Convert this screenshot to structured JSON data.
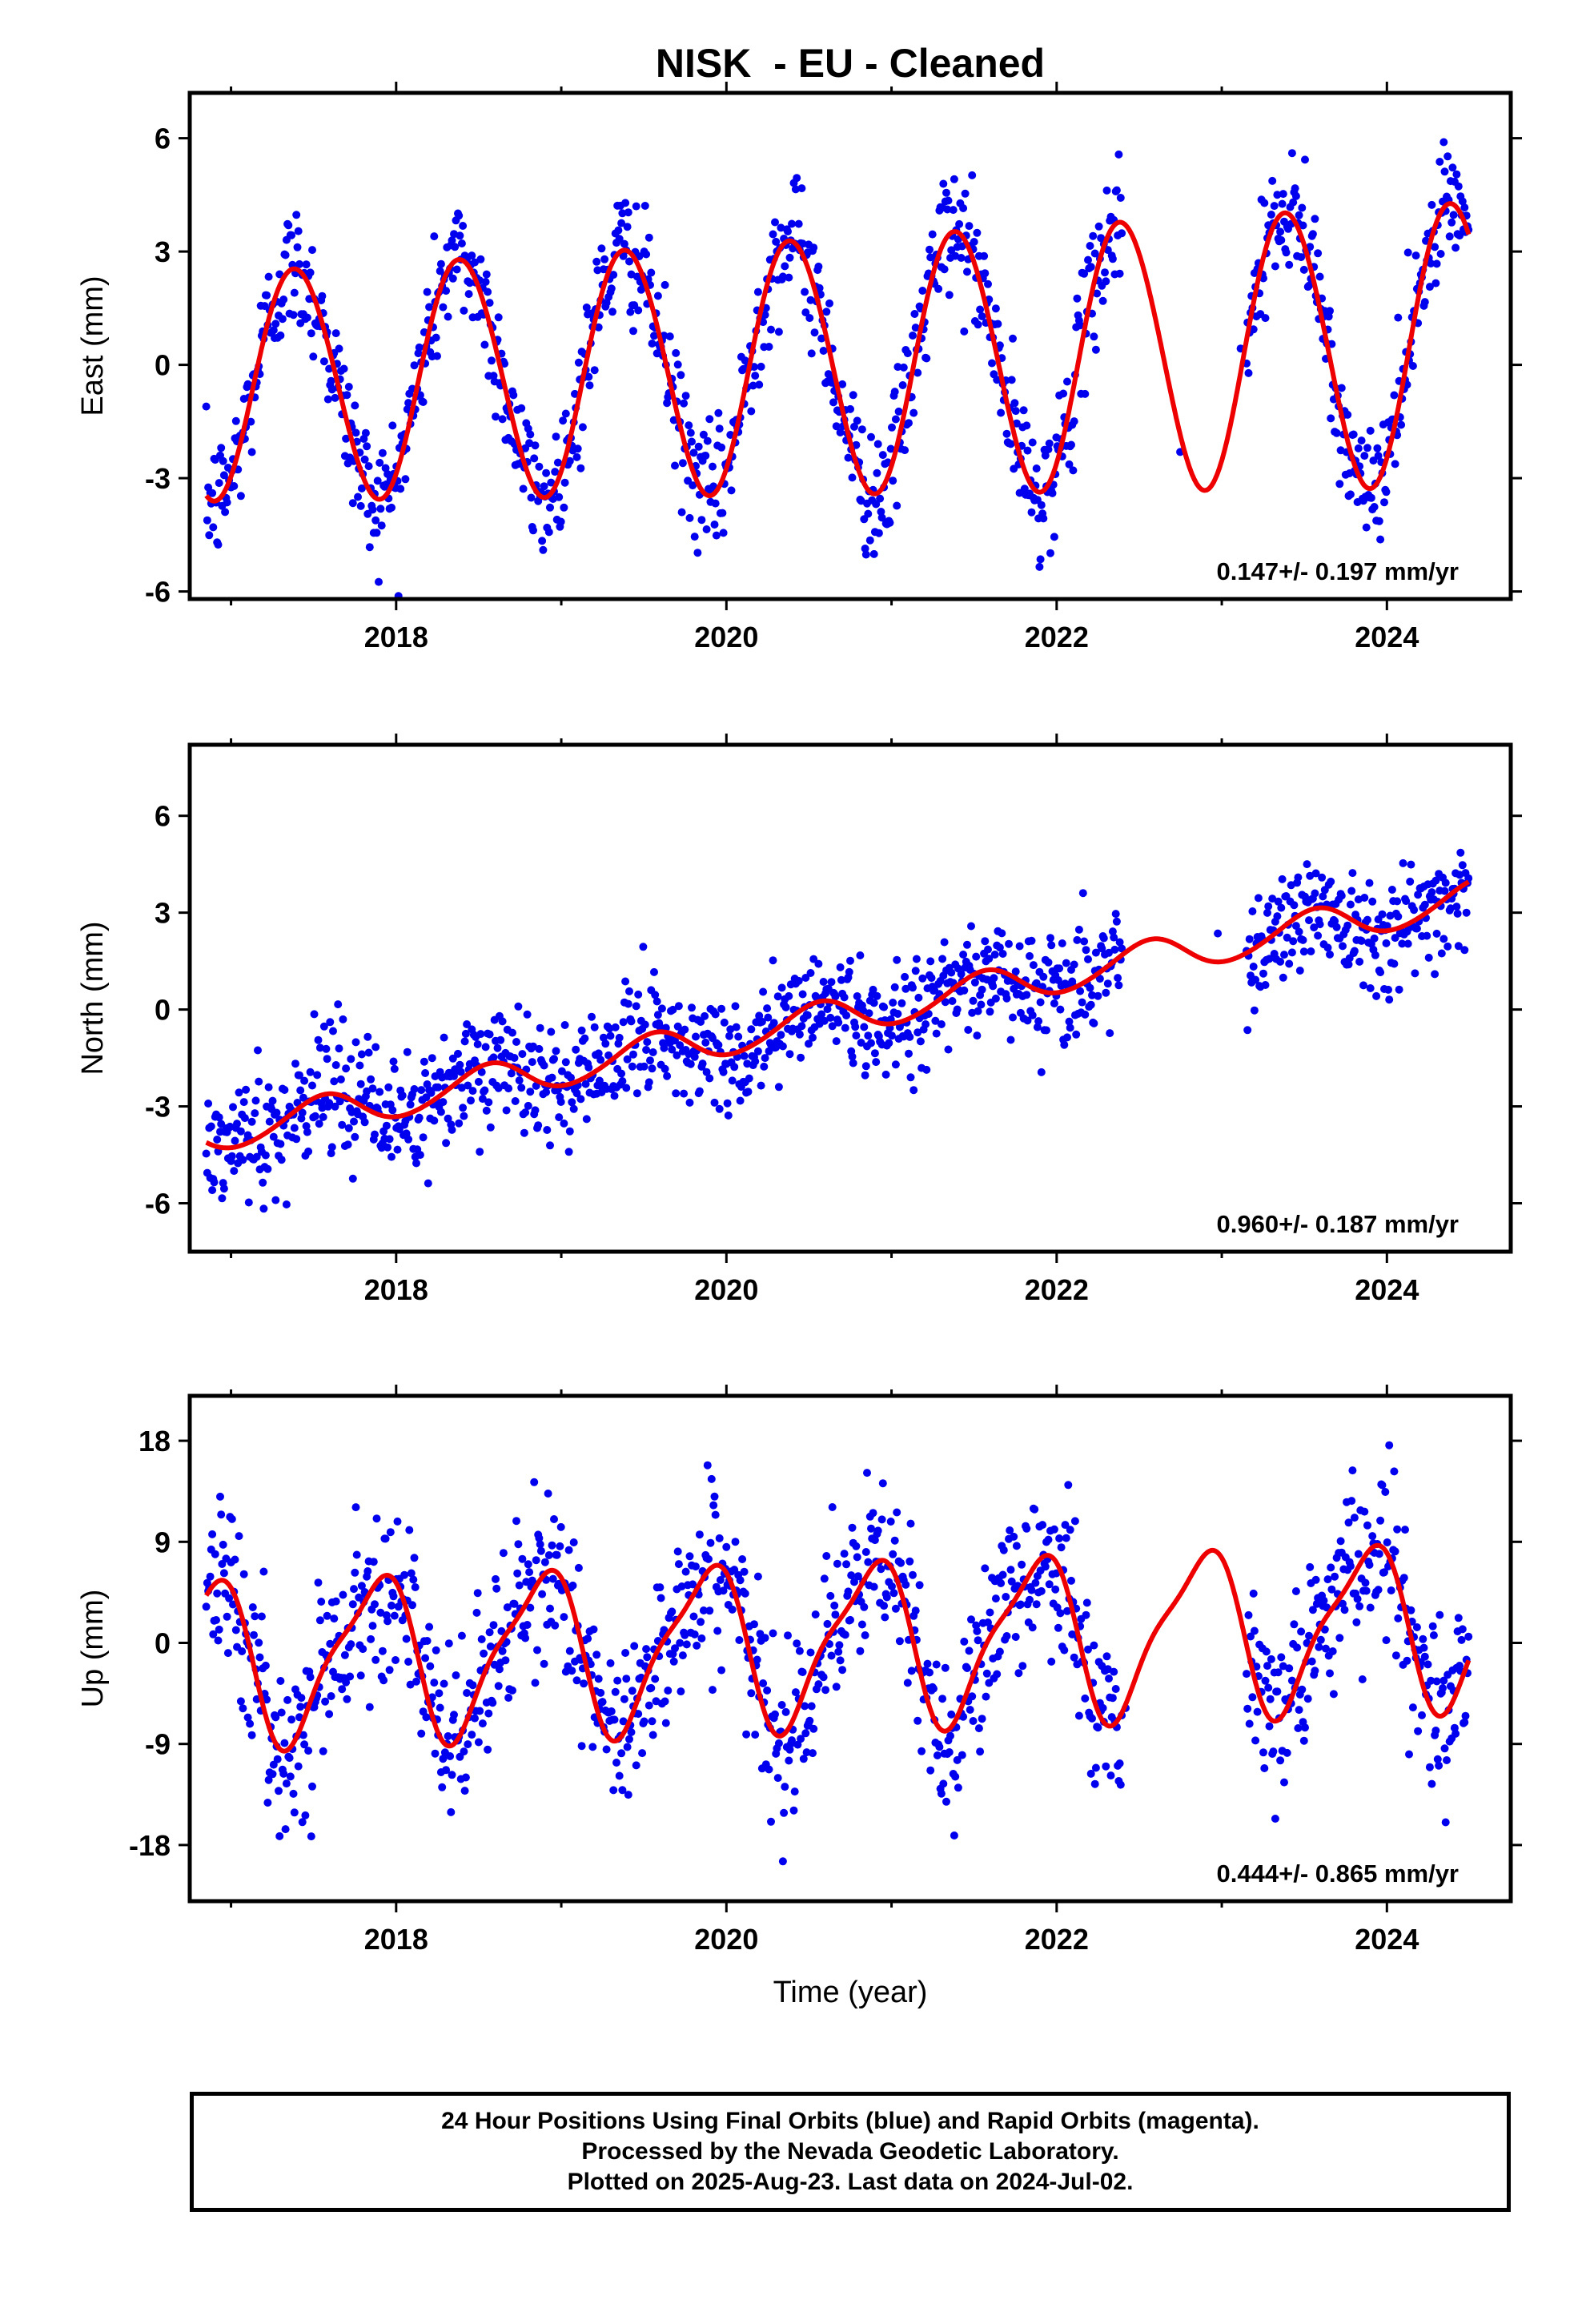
{
  "title": "NISK  - EU - Cleaned",
  "footer": {
    "line1": "24 Hour Positions Using Final Orbits (blue) and Rapid Orbits (magenta).",
    "line2": "Processed by the Nevada Geodetic Laboratory.",
    "line3": "Plotted on 2025-Aug-23. Last data on 2024-Jul-02."
  },
  "colors": {
    "points": "#0000ee",
    "model": "#ee0000",
    "axes": "#000000"
  },
  "chart_data": [
    {
      "type": "scatter",
      "ylabel": "East (mm)",
      "xlabel": "",
      "xlim": [
        2016.75,
        2024.75
      ],
      "ylim": [
        -6.2,
        7.2
      ],
      "xticks": [
        2018,
        2020,
        2022,
        2024
      ],
      "yticks": [
        -6,
        -3,
        0,
        3,
        6
      ],
      "rate_label": "0.147+/- 0.197 mm/yr",
      "model": {
        "offset": 0.0,
        "rate": 0.147,
        "amp1": 3.0,
        "phase1": 0.14,
        "amp2": 0.1,
        "phase2": 0.1,
        "amp1_growth": 0.1
      },
      "noise": 0.85,
      "gaps": [
        [
          2022.4,
          2023.15
        ]
      ]
    },
    {
      "type": "scatter",
      "ylabel": "North (mm)",
      "xlabel": "",
      "xlim": [
        2016.75,
        2024.75
      ],
      "ylim": [
        -7.5,
        8.2
      ],
      "xticks": [
        2018,
        2020,
        2022,
        2024
      ],
      "yticks": [
        -6,
        -3,
        0,
        3,
        6
      ],
      "rate_label": "0.960+/- 0.187 mm/yr",
      "model": {
        "offset": -0.3,
        "rate": 0.96,
        "amp1": 0.55,
        "phase1": 0.3,
        "amp2": 0.05,
        "phase2": 0.0,
        "amp1_growth": 0.0
      },
      "noise": 0.9,
      "gaps": [
        [
          2022.4,
          2023.15
        ]
      ]
    },
    {
      "type": "scatter",
      "ylabel": "Up (mm)",
      "xlabel": "Time (year)",
      "xlim": [
        2016.75,
        2024.75
      ],
      "ylim": [
        -23,
        22
      ],
      "xticks": [
        2018,
        2020,
        2022,
        2024
      ],
      "yticks": [
        -18,
        -9,
        0,
        9,
        18
      ],
      "rate_label": "0.444+/- 0.865 mm/yr",
      "model": {
        "offset": 0.0,
        "rate": 0.444,
        "amp1": 7.0,
        "phase1": 0.62,
        "amp2": 1.8,
        "phase2": 0.4,
        "amp1_growth": 0.0
      },
      "noise": 3.8,
      "gaps": [
        [
          2022.4,
          2023.15
        ]
      ]
    }
  ]
}
